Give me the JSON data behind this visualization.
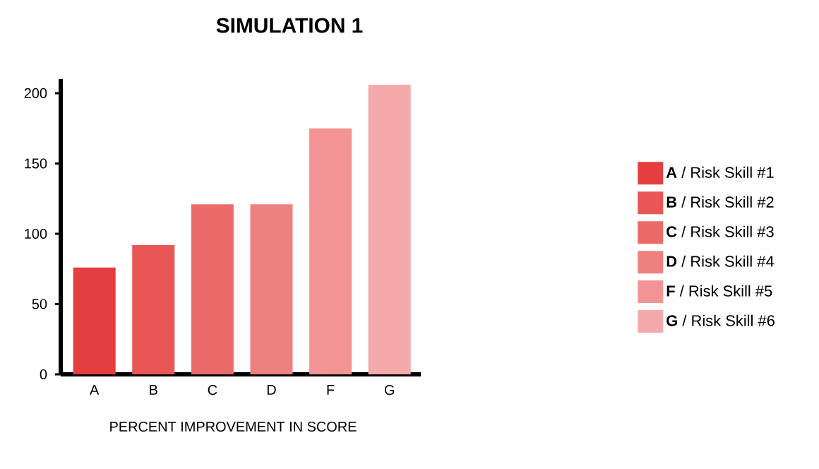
{
  "chart_data": {
    "type": "bar",
    "title": "SIMULATION 1",
    "xlabel": "PERCENT IMPROVEMENT IN SCORE",
    "categories": [
      "A",
      "B",
      "C",
      "D",
      "F",
      "G"
    ],
    "series": [
      {
        "name": "**A** / Risk Skill #1",
        "color": "#e53e3e",
        "values": [
          76,
          null,
          null,
          null,
          null,
          null
        ]
      },
      {
        "name": "**B** / Risk Skill #2",
        "color": "#e85656",
        "values": [
          null,
          92,
          null,
          null,
          null,
          null
        ]
      },
      {
        "name": "**C** / Risk Skill #3",
        "color": "#eb6b6b",
        "values": [
          null,
          null,
          121,
          null,
          null,
          null
        ]
      },
      {
        "name": "**D** / Risk Skill #4",
        "color": "#ee8080",
        "values": [
          null,
          null,
          null,
          121,
          null,
          null
        ]
      },
      {
        "name": "**F** / Risk Skill #5",
        "color": "#f29494",
        "values": [
          null,
          null,
          null,
          null,
          175,
          null
        ]
      },
      {
        "name": "**G** / Risk Skill #6",
        "color": "#f4aaaa",
        "values": [
          null,
          null,
          null,
          null,
          null,
          206
        ]
      }
    ],
    "ylim": [
      0,
      210
    ],
    "yticks": [
      0,
      50,
      100,
      150,
      200
    ],
    "grid": false,
    "legend": "right"
  }
}
